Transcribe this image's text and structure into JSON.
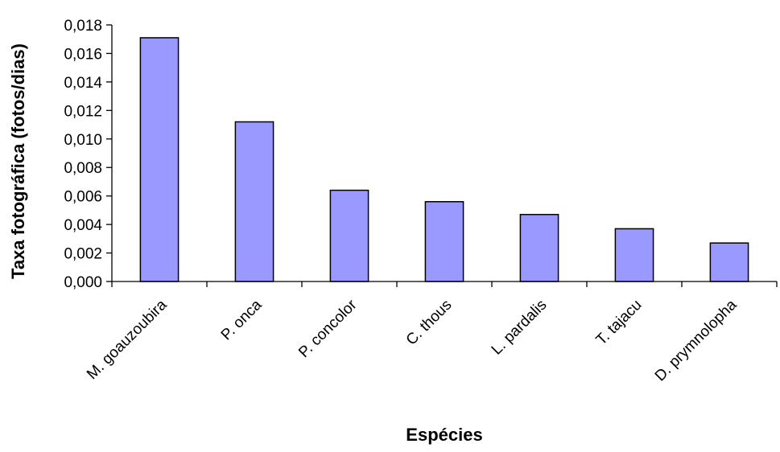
{
  "chart_data": {
    "type": "bar",
    "title": "",
    "xlabel": "Espécies",
    "ylabel": "Taxa fotográfica (fotos/dias)",
    "categories": [
      "M. goauzoubira",
      "P. onca",
      "P. concolor",
      "C. thous",
      "L. pardalis",
      "T. tajacu",
      "D. prymnolopha"
    ],
    "values": [
      0.0171,
      0.0112,
      0.0064,
      0.0056,
      0.0047,
      0.0037,
      0.0027
    ],
    "ylim": [
      0,
      0.018
    ],
    "yticks": [
      0,
      0.002,
      0.004,
      0.006,
      0.008,
      0.01,
      0.012,
      0.014,
      0.016,
      0.018
    ],
    "ytick_labels": [
      "0,000",
      "0,002",
      "0,004",
      "0,006",
      "0,008",
      "0,010",
      "0,012",
      "0,014",
      "0,016",
      "0,018"
    ],
    "grid": false,
    "legend": "none",
    "bar_color": "#9999ff",
    "bar_edge_color": "#000000"
  }
}
